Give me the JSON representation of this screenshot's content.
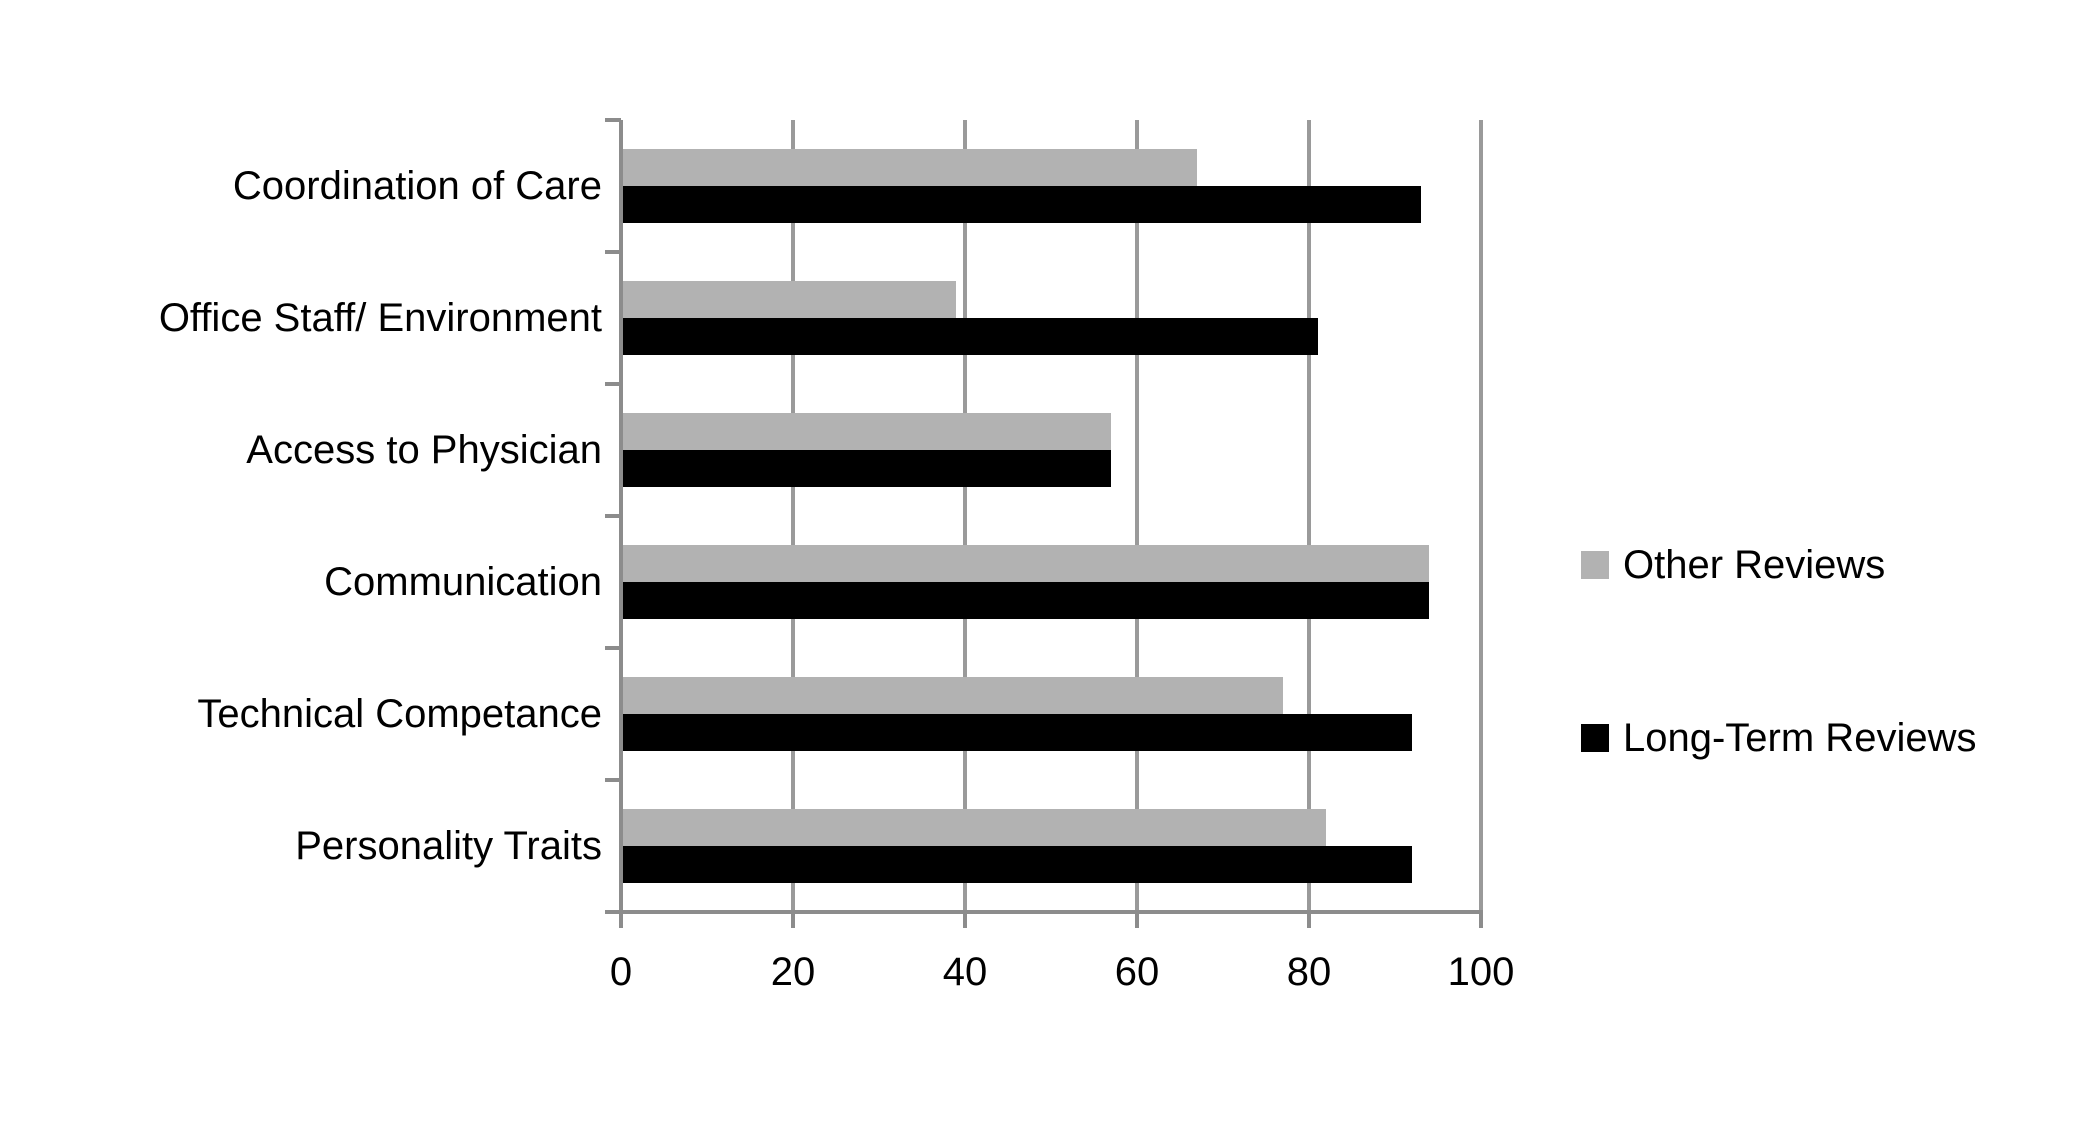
{
  "chart_data": {
    "type": "bar",
    "orientation": "horizontal",
    "title": "",
    "xlabel": "",
    "ylabel": "",
    "categories": [
      "Coordination of Care",
      "Office Staff/ Environment",
      "Access to Physician",
      "Communication",
      "Technical Competance",
      "Personality Traits"
    ],
    "series": [
      {
        "name": "Other Reviews",
        "color": "#b2b2b2",
        "values": [
          67,
          39,
          57,
          94,
          77,
          82
        ]
      },
      {
        "name": "Long-Term Reviews",
        "color": "#000000",
        "values": [
          93,
          81,
          57,
          94,
          92,
          92
        ]
      }
    ],
    "xlim": [
      0,
      100
    ],
    "xticks": [
      0,
      20,
      40,
      60,
      80,
      100
    ],
    "grid": true,
    "legend_position": "right"
  },
  "colors": {
    "background": "#ffffff",
    "gridline": "#9a9a9a",
    "axis": "#8c8c8c",
    "text": "#000000"
  }
}
